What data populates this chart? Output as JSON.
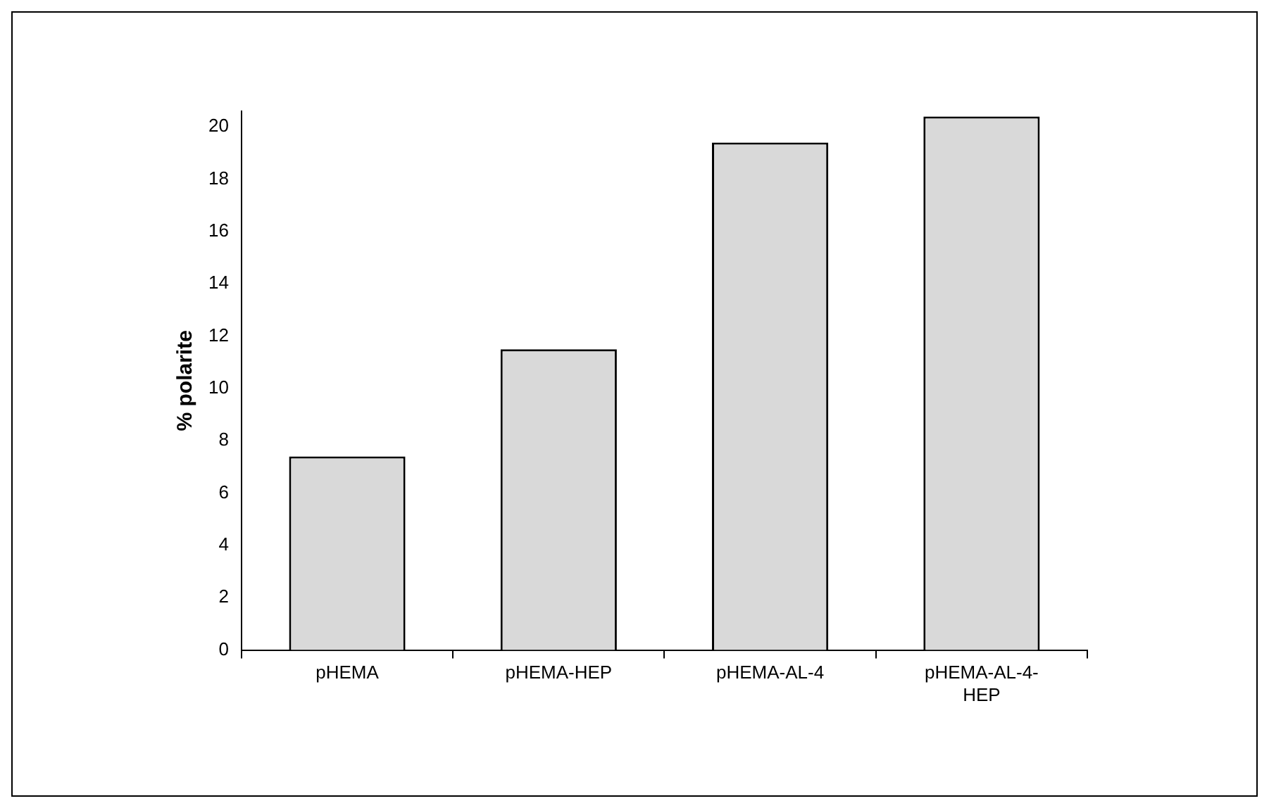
{
  "chart_data": {
    "type": "bar",
    "ylabel": "% polarite",
    "categories": [
      "pHEMA",
      "pHEMA-HEP",
      "pHEMA-AL-4",
      "pHEMA-AL-4-HEP"
    ],
    "values": [
      7.4,
      11.5,
      19.4,
      20.4
    ],
    "color": "#d9d9d9",
    "ylim": [
      0,
      20.6
    ],
    "yticks": [
      0,
      2,
      4,
      6,
      8,
      10,
      12,
      14,
      16,
      18,
      20
    ],
    "grid": false,
    "legend": false
  }
}
